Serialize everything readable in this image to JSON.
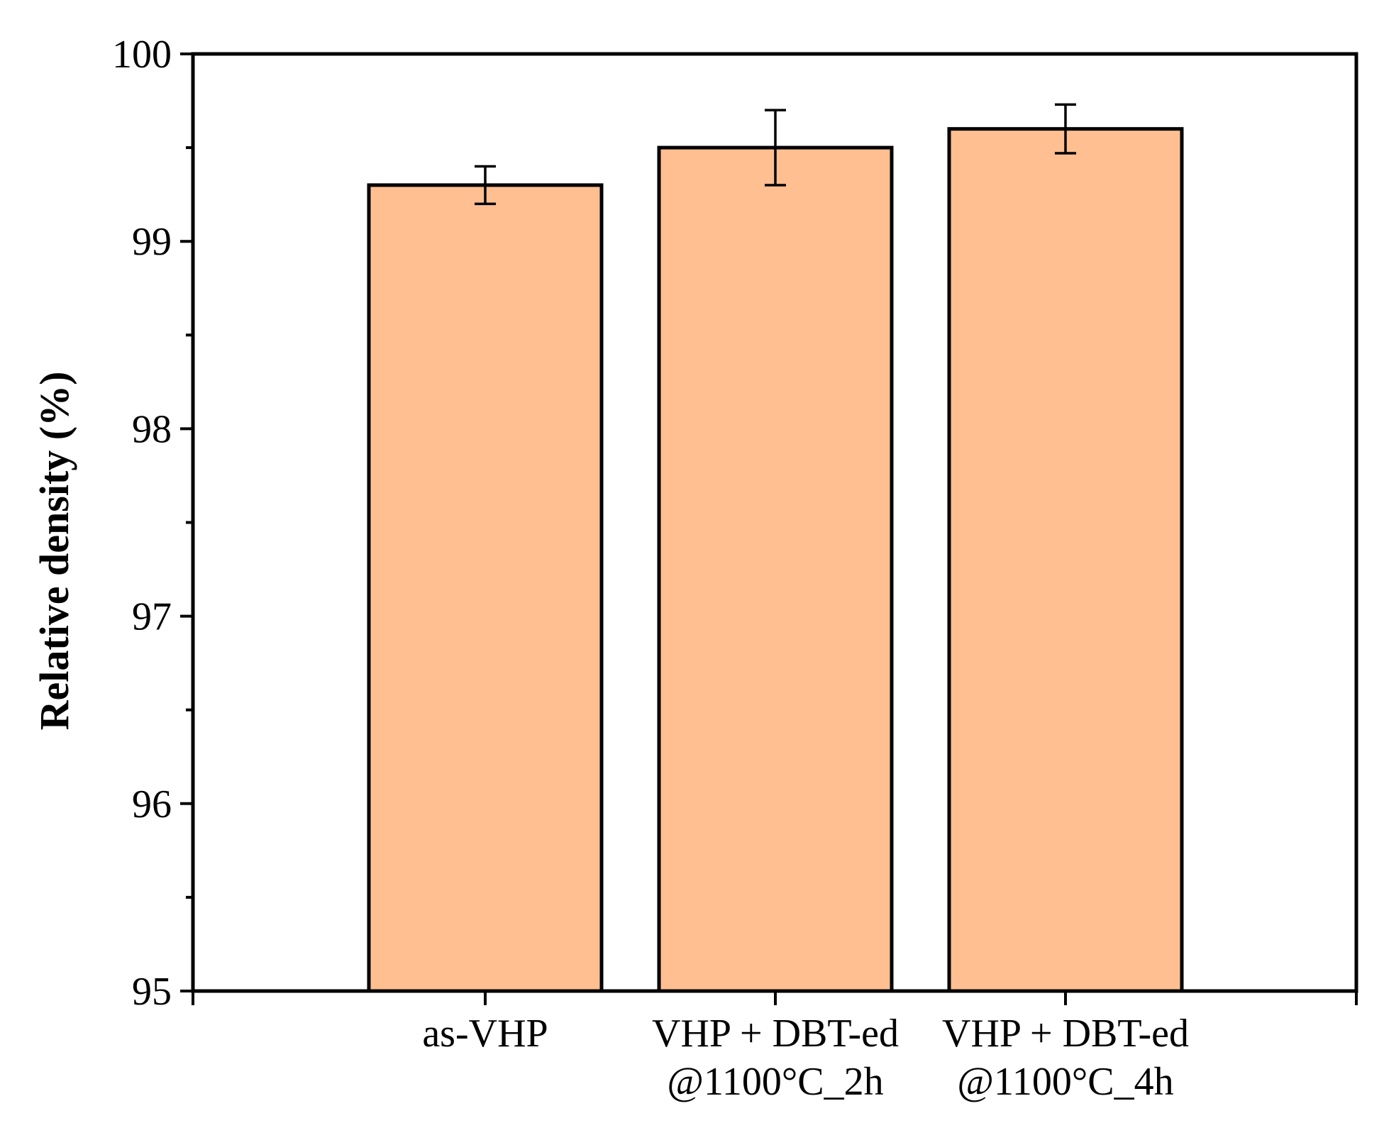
{
  "chart_data": {
    "type": "bar",
    "title": "",
    "xlabel": "",
    "ylabel": "Relative density (%)",
    "ylim": [
      95,
      100
    ],
    "yticks": [
      95,
      96,
      97,
      98,
      99,
      100
    ],
    "yminor_step": 0.5,
    "grid": false,
    "categories": [
      [
        "as-VHP"
      ],
      [
        "VHP + DBT-ed",
        "@1100°C_2h"
      ],
      [
        "VHP + DBT-ed",
        "@1100°C_4h"
      ]
    ],
    "values": [
      99.3,
      99.5,
      99.6
    ],
    "errors": [
      0.1,
      0.2,
      0.13
    ],
    "colors": {
      "bar_fill": "#FFBF91",
      "bar_edge": "#000000",
      "axis": "#000000"
    }
  }
}
